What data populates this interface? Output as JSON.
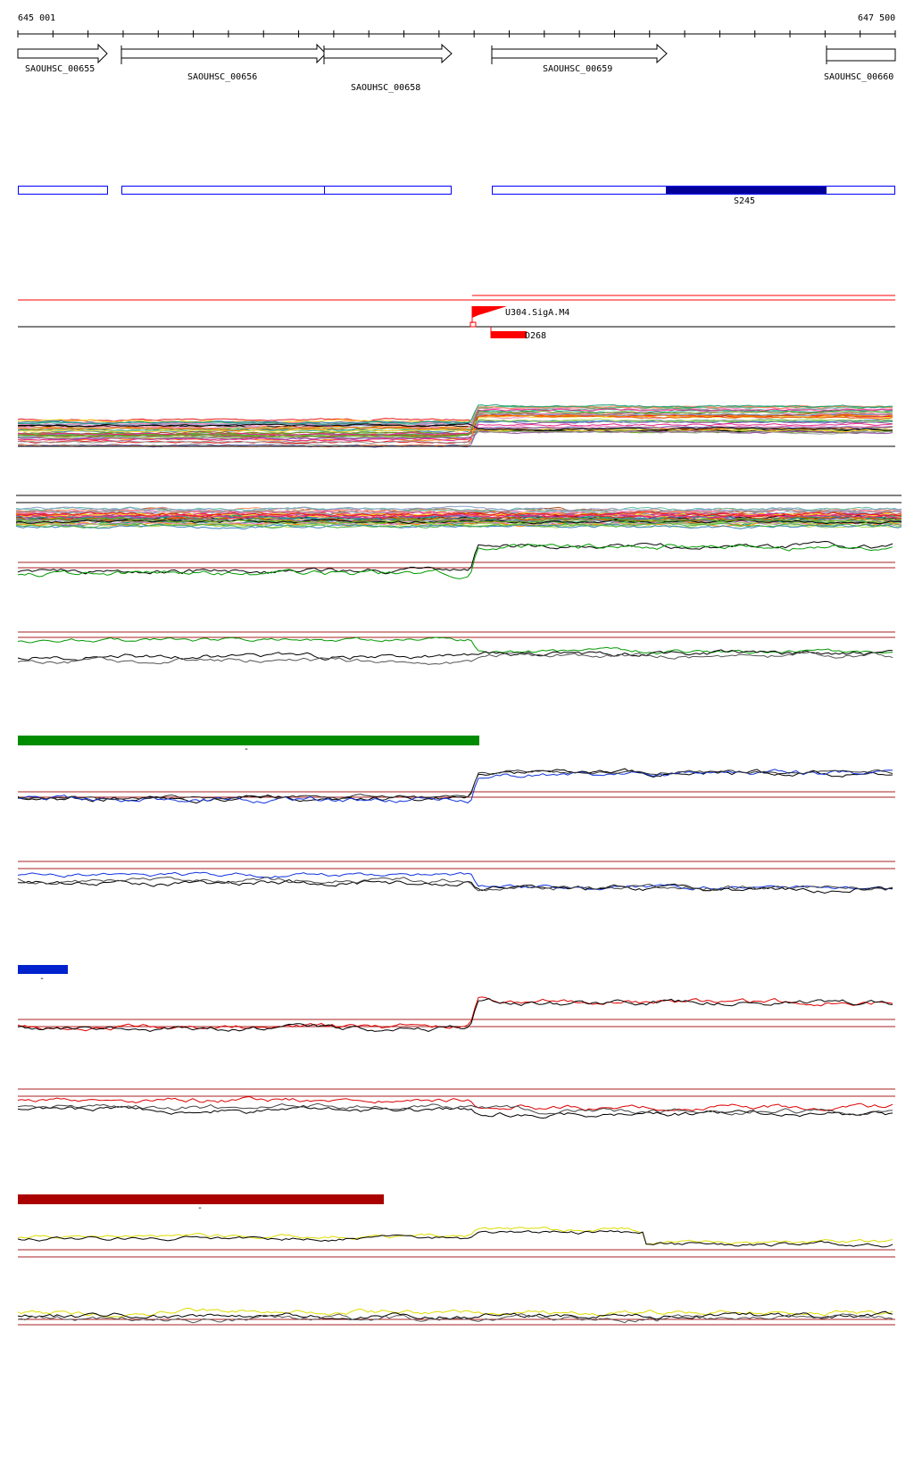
{
  "ruler": {
    "start_label": "645 001",
    "end_label": "647 500"
  },
  "genes": [
    {
      "name": "SAOUHSC_00655",
      "strand": "+"
    },
    {
      "name": "SAOUHSC_00656",
      "strand": "+"
    },
    {
      "name": "SAOUHSC_00658",
      "strand": "+"
    },
    {
      "name": "SAOUHSC_00659",
      "strand": "+"
    },
    {
      "name": "SAOUHSC_00660",
      "strand": "+"
    }
  ],
  "segments": {
    "highlight_label": "S245",
    "highlight_color": "#000099",
    "outline_color": "#0000ff"
  },
  "features": {
    "promoter_label": "U304.SigA.M4",
    "region_label": "D268",
    "feature_color": "#ff0000"
  },
  "condition_groups": [
    {
      "strand_label": "-",
      "color": "#008c00"
    },
    {
      "strand_label": "-",
      "color": "#0022cc"
    },
    {
      "strand_label": "-",
      "color": "#aa0000"
    }
  ],
  "series_colors": {
    "green": "#009900",
    "blue": "#1133dd",
    "red": "#dd0000",
    "yellow": "#dddd00",
    "black": "#000000",
    "threshold": "#aa2222"
  }
}
